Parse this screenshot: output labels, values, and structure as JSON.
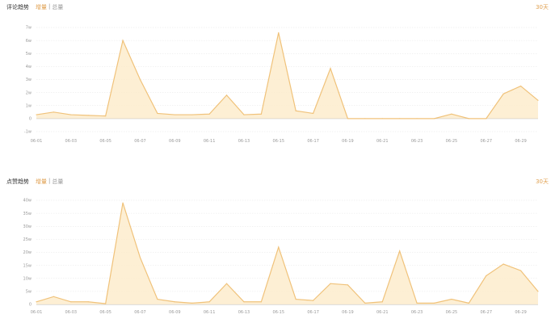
{
  "colors": {
    "line": "#f0c27a",
    "fill": "#fdeccc",
    "accent": "#e0a050"
  },
  "chart_data": [
    {
      "type": "area",
      "title": "评论趋势",
      "toggle": [
        "增量",
        "总量"
      ],
      "active_toggle": "增量",
      "range": "30天",
      "x": [
        "06-01",
        "06-02",
        "06-03",
        "06-04",
        "06-05",
        "06-06",
        "06-07",
        "06-08",
        "06-09",
        "06-10",
        "06-11",
        "06-12",
        "06-13",
        "06-14",
        "06-15",
        "06-16",
        "06-17",
        "06-18",
        "06-19",
        "06-20",
        "06-21",
        "06-22",
        "06-23",
        "06-24",
        "06-25",
        "06-26",
        "06-27",
        "06-28",
        "06-29",
        "06-30"
      ],
      "xticks": [
        "06-01",
        "06-03",
        "06-05",
        "06-07",
        "06-09",
        "06-11",
        "06-13",
        "06-15",
        "06-17",
        "06-19",
        "06-21",
        "06-23",
        "06-25",
        "06-27",
        "06-29"
      ],
      "values": [
        0.3,
        0.5,
        0.3,
        0.25,
        0.2,
        6.0,
        3.0,
        0.4,
        0.3,
        0.3,
        0.35,
        1.8,
        0.3,
        0.35,
        6.6,
        0.6,
        0.4,
        3.85,
        0,
        0,
        0,
        0,
        0,
        0,
        0.35,
        0,
        0,
        1.9,
        2.5,
        1.4
      ],
      "unit": "w",
      "ylim": [
        -1,
        7
      ],
      "yticks": [
        "-1w",
        "0",
        "1w",
        "2w",
        "3w",
        "4w",
        "5w",
        "6w",
        "7w"
      ],
      "grid": true
    },
    {
      "type": "area",
      "title": "点赞趋势",
      "toggle": [
        "增量",
        "总量"
      ],
      "active_toggle": "增量",
      "range": "30天",
      "x": [
        "06-01",
        "06-02",
        "06-03",
        "06-04",
        "06-05",
        "06-06",
        "06-07",
        "06-08",
        "06-09",
        "06-10",
        "06-11",
        "06-12",
        "06-13",
        "06-14",
        "06-15",
        "06-16",
        "06-17",
        "06-18",
        "06-19",
        "06-20",
        "06-21",
        "06-22",
        "06-23",
        "06-24",
        "06-25",
        "06-26",
        "06-27",
        "06-28",
        "06-29",
        "06-30"
      ],
      "xticks": [
        "06-01",
        "06-03",
        "06-05",
        "06-07",
        "06-09",
        "06-11",
        "06-13",
        "06-15",
        "06-17",
        "06-19",
        "06-21",
        "06-23",
        "06-25",
        "06-27",
        "06-29"
      ],
      "values": [
        1,
        3,
        1,
        1,
        0.3,
        39,
        18,
        2,
        1,
        0.5,
        1,
        8,
        1,
        1,
        22,
        2,
        1.5,
        8,
        7.5,
        0.5,
        1,
        20.5,
        0.5,
        0.5,
        2,
        0.5,
        11,
        15.5,
        13,
        5
      ],
      "unit": "w",
      "ylim": [
        0,
        40
      ],
      "yticks": [
        "0",
        "5w",
        "10w",
        "15w",
        "20w",
        "25w",
        "30w",
        "35w",
        "40w"
      ],
      "grid": true
    }
  ]
}
